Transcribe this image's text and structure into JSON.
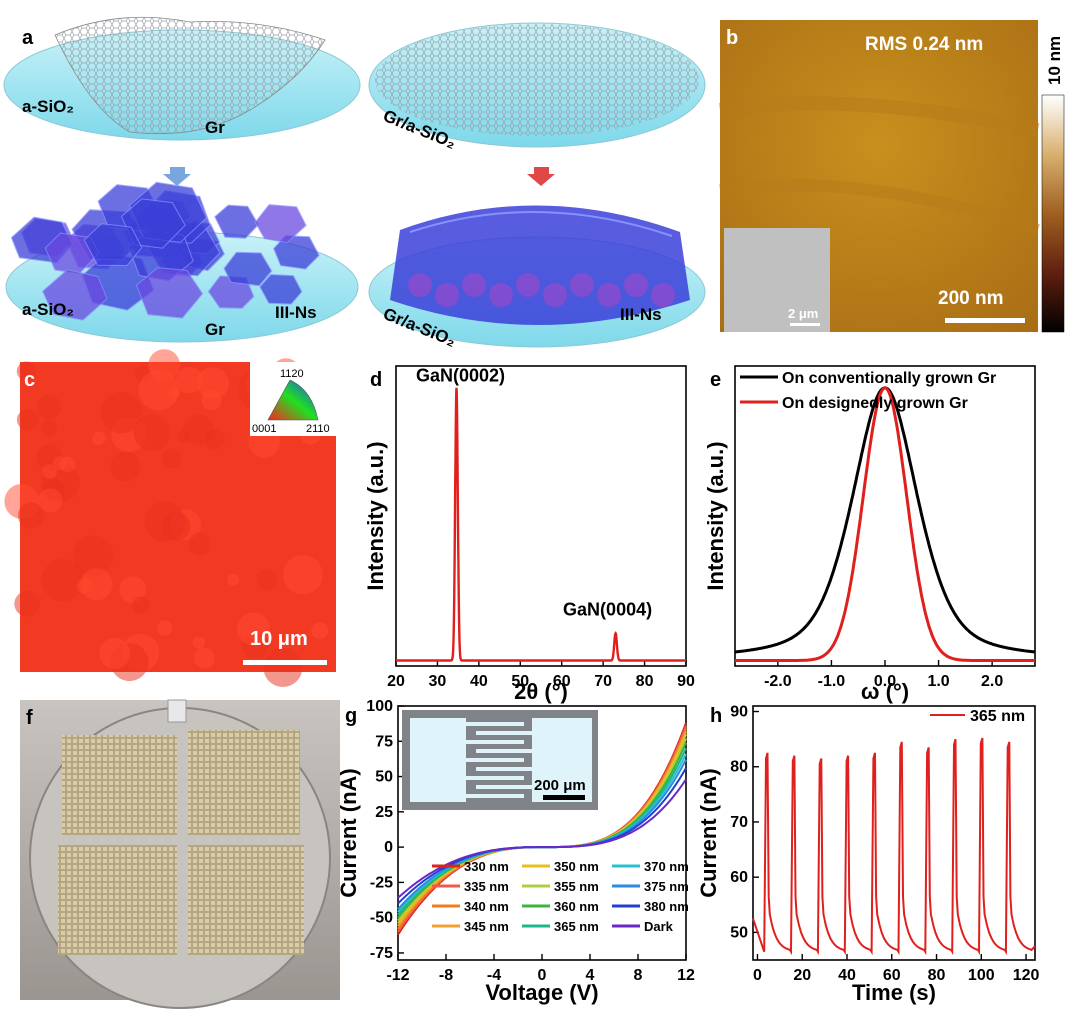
{
  "panel_labels": {
    "a": "a",
    "b": "b",
    "c": "c",
    "d": "d",
    "e": "e",
    "f": "f",
    "g": "g",
    "h": "h"
  },
  "panel_a": {
    "tl_substrate": "a-SiO₂",
    "tl_gr": "Gr",
    "tr_substrate": "Gr/a-SiO₂",
    "bl_substrate": "a-SiO₂",
    "bl_gr": "Gr",
    "bl_iii": "III-Ns",
    "br_substrate": "Gr/a-SiO₂",
    "br_iii": "III-Ns",
    "arrow_left_color": "#7aa6e0",
    "arrow_right_color": "#e04848"
  },
  "panel_b": {
    "rms": "RMS 0.24 nm",
    "colorbar_top": "10 nm",
    "scale": "200 nm",
    "inset_scale": "2 μm"
  },
  "panel_c": {
    "scale": "10 μm",
    "legend_top": "1120",
    "legend_left": "0001",
    "legend_right": "2110",
    "map_color": "#f23a22"
  },
  "chart_data": [
    {
      "panel": "d",
      "type": "line",
      "title": "",
      "xlabel": "2θ (°)",
      "ylabel": "Intensity (a.u.)",
      "xlim": [
        20,
        90
      ],
      "ylim": [
        0,
        1.1
      ],
      "xticks": [
        20,
        30,
        40,
        50,
        60,
        70,
        80,
        90
      ],
      "peaks": [
        {
          "label": "GaN(0002)",
          "x": 34.6,
          "height": 1.0,
          "width": 0.45
        },
        {
          "label": "GaN(0004)",
          "x": 73.0,
          "height": 0.1,
          "width": 0.45
        }
      ],
      "baseline": 0.02,
      "color": "#e0201c"
    },
    {
      "panel": "e",
      "type": "line",
      "xlabel": "ω (°)",
      "ylabel": "Intensity (a.u.)",
      "xlim": [
        -2.8,
        2.8
      ],
      "ylim": [
        0,
        1.1
      ],
      "xticks": [
        -2.0,
        -1.0,
        0.0,
        1.0,
        2.0
      ],
      "xtick_labels": [
        "-2.0",
        "-1.0",
        "0.0",
        "1.0",
        "2.0"
      ],
      "series": [
        {
          "name": "On conventionally grown Gr",
          "color": "#000000",
          "center": 0.0,
          "fwhm": 1.45,
          "shape": "lorentzian-ish"
        },
        {
          "name": "On designedly grown Gr",
          "color": "#e0201c",
          "center": 0.0,
          "fwhm": 0.95,
          "shape": "gaussian"
        }
      ]
    },
    {
      "panel": "g",
      "type": "line",
      "xlabel": "Voltage (V)",
      "ylabel": "Current (nA)",
      "xlim": [
        -12,
        12
      ],
      "ylim": [
        -80,
        100
      ],
      "xticks": [
        -12,
        -8,
        -4,
        0,
        4,
        8,
        12
      ],
      "yticks": [
        -75,
        -50,
        -25,
        0,
        25,
        50,
        75,
        100
      ],
      "inset_scale": "200 μm",
      "series": [
        {
          "name": "330 nm",
          "color": "#d9261c",
          "i_at_pos12": 88,
          "i_at_neg12": -62
        },
        {
          "name": "335 nm",
          "color": "#f05a4a",
          "i_at_pos12": 86,
          "i_at_neg12": -60
        },
        {
          "name": "340 nm",
          "color": "#f07c1a",
          "i_at_pos12": 84,
          "i_at_neg12": -58
        },
        {
          "name": "345 nm",
          "color": "#f0a030",
          "i_at_pos12": 82,
          "i_at_neg12": -56
        },
        {
          "name": "350 nm",
          "color": "#e6c020",
          "i_at_pos12": 80,
          "i_at_neg12": -54
        },
        {
          "name": "355 nm",
          "color": "#a8d040",
          "i_at_pos12": 77,
          "i_at_neg12": -52
        },
        {
          "name": "360 nm",
          "color": "#3cb43c",
          "i_at_pos12": 74,
          "i_at_neg12": -50
        },
        {
          "name": "365 nm",
          "color": "#20b48c",
          "i_at_pos12": 70,
          "i_at_neg12": -48
        },
        {
          "name": "370 nm",
          "color": "#28c0d0",
          "i_at_pos12": 66,
          "i_at_neg12": -46
        },
        {
          "name": "375 nm",
          "color": "#2a8ce0",
          "i_at_pos12": 62,
          "i_at_neg12": -44
        },
        {
          "name": "380 nm",
          "color": "#2040d0",
          "i_at_pos12": 56,
          "i_at_neg12": -40
        },
        {
          "name": "Dark",
          "color": "#6a28c8",
          "i_at_pos12": 48,
          "i_at_neg12": -36
        }
      ]
    },
    {
      "panel": "h",
      "type": "line",
      "xlabel": "Time (s)",
      "ylabel": "Current (nA)",
      "xlim": [
        -2,
        124
      ],
      "ylim": [
        45,
        91
      ],
      "xticks": [
        0,
        20,
        40,
        60,
        80,
        100,
        120
      ],
      "yticks": [
        50,
        60,
        70,
        80,
        90
      ],
      "legend": "365 nm",
      "color": "#e0201c",
      "pulses": [
        {
          "t_on": 3,
          "peak": 82.5
        },
        {
          "t_on": 15,
          "peak": 82.0
        },
        {
          "t_on": 27,
          "peak": 81.5
        },
        {
          "t_on": 39,
          "peak": 82.0
        },
        {
          "t_on": 51,
          "peak": 82.5
        },
        {
          "t_on": 63,
          "peak": 84.5
        },
        {
          "t_on": 75,
          "peak": 83.5
        },
        {
          "t_on": 87,
          "peak": 85.0
        },
        {
          "t_on": 99,
          "peak": 85.2
        },
        {
          "t_on": 111,
          "peak": 84.5
        }
      ],
      "dark_floor": 46.5
    }
  ]
}
